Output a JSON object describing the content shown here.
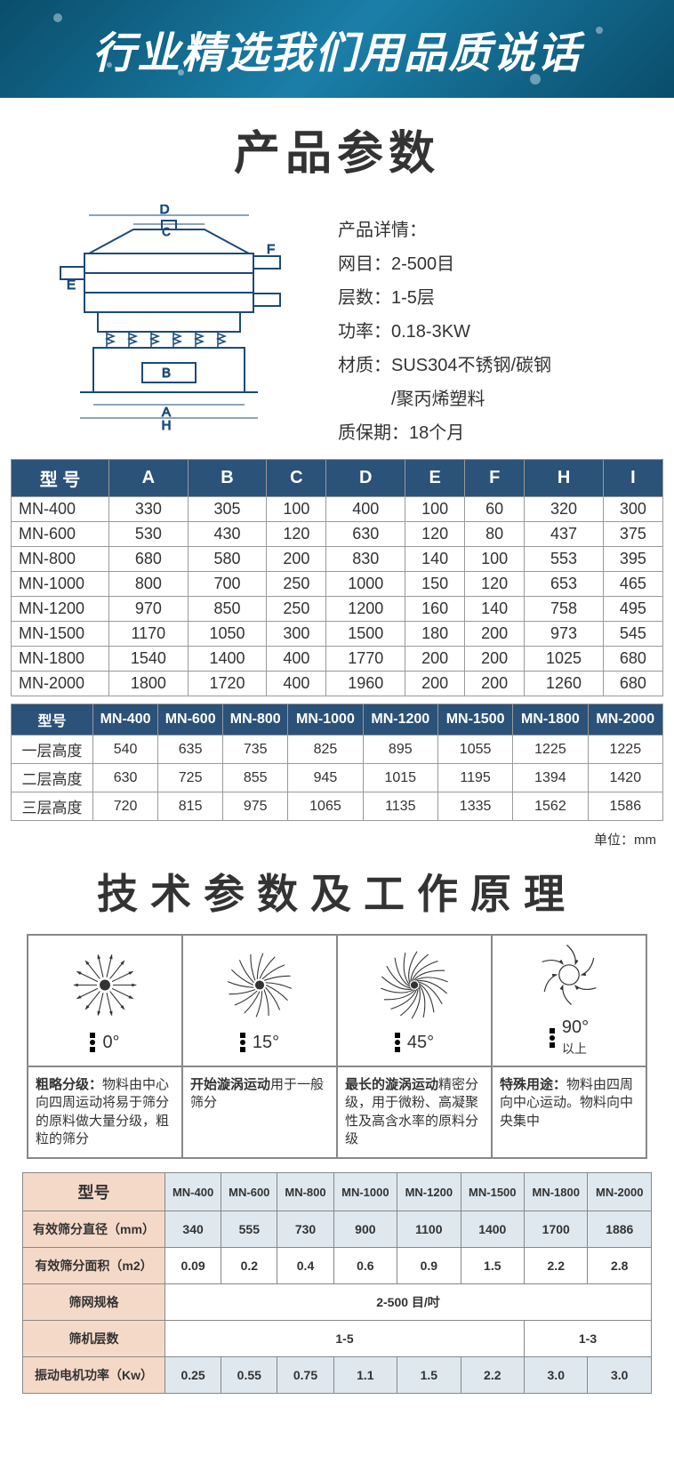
{
  "banner": {
    "text": "行业精选我们用品质说话",
    "bg_colors": [
      "#0a4d6b",
      "#1a7fa8"
    ]
  },
  "titles": {
    "product_params": "产品参数",
    "tech_principle": "技术参数及工作原理"
  },
  "details": {
    "header": "产品详情：",
    "mesh_label": "网目：",
    "mesh_value": "2-500目",
    "layers_label": "层数：",
    "layers_value": "1-5层",
    "power_label": "功率：",
    "power_value": "0.18-3KW",
    "material_label": "材质：",
    "material_value": "SUS304不锈钢/碳钢",
    "material_value2": "/聚丙烯塑料",
    "warranty_label": "质保期：",
    "warranty_value": "18个月"
  },
  "diagram_labels": {
    "A": "A",
    "B": "B",
    "C": "C",
    "D": "D",
    "E": "E",
    "F": "F",
    "H": "H"
  },
  "spec_table": {
    "headers": [
      "型 号",
      "A",
      "B",
      "C",
      "D",
      "E",
      "F",
      "H",
      "I"
    ],
    "rows": [
      [
        "MN-400",
        "330",
        "305",
        "100",
        "400",
        "100",
        "60",
        "320",
        "300"
      ],
      [
        "MN-600",
        "530",
        "430",
        "120",
        "630",
        "120",
        "80",
        "437",
        "375"
      ],
      [
        "MN-800",
        "680",
        "580",
        "200",
        "830",
        "140",
        "100",
        "553",
        "395"
      ],
      [
        "MN-1000",
        "800",
        "700",
        "250",
        "1000",
        "150",
        "120",
        "653",
        "465"
      ],
      [
        "MN-1200",
        "970",
        "850",
        "250",
        "1200",
        "160",
        "140",
        "758",
        "495"
      ],
      [
        "MN-1500",
        "1170",
        "1050",
        "300",
        "1500",
        "180",
        "200",
        "973",
        "545"
      ],
      [
        "MN-1800",
        "1540",
        "1400",
        "400",
        "1770",
        "200",
        "200",
        "1025",
        "680"
      ],
      [
        "MN-2000",
        "1800",
        "1720",
        "400",
        "1960",
        "200",
        "200",
        "1260",
        "680"
      ]
    ]
  },
  "height_table": {
    "headers": [
      "型号",
      "MN-400",
      "MN-600",
      "MN-800",
      "MN-1000",
      "MN-1200",
      "MN-1500",
      "MN-1800",
      "MN-2000"
    ],
    "rows": [
      [
        "一层高度",
        "540",
        "635",
        "735",
        "825",
        "895",
        "1055",
        "1225",
        "1225"
      ],
      [
        "二层高度",
        "630",
        "725",
        "855",
        "945",
        "1015",
        "1195",
        "1394",
        "1420"
      ],
      [
        "三层高度",
        "720",
        "815",
        "975",
        "1065",
        "1135",
        "1335",
        "1562",
        "1586"
      ]
    ],
    "unit": "单位：mm"
  },
  "principle": {
    "items": [
      {
        "angle": "0°",
        "desc_bold": "粗略分级：",
        "desc": "物料由中心向四周运动将易于筛分的原料做大量分级，粗粒的筛分"
      },
      {
        "angle": "15°",
        "desc_bold": "开始漩涡运动",
        "desc": "用于一般筛分"
      },
      {
        "angle": "45°",
        "desc_bold": "最长的漩涡运动",
        "desc": "精密分级，用于微粉、高凝聚性及高含水率的原料分级"
      },
      {
        "angle": "90°",
        "angle_suffix": "以上",
        "desc_bold": "特殊用途：",
        "desc": "物料由四周向中心运动。物料向中央集中"
      }
    ]
  },
  "tech_table": {
    "row_labels": [
      "型号",
      "有效筛分直径（mm）",
      "有效筛分面积（m2）",
      "筛网规格",
      "筛机层数",
      "振动电机功率（Kw）"
    ],
    "models": [
      "MN-400",
      "MN-600",
      "MN-800",
      "MN-1000",
      "MN-1200",
      "MN-1500",
      "MN-1800",
      "MN-2000"
    ],
    "diameter": [
      "340",
      "555",
      "730",
      "900",
      "1100",
      "1400",
      "1700",
      "1886"
    ],
    "area": [
      "0.09",
      "0.2",
      "0.4",
      "0.6",
      "0.9",
      "1.5",
      "2.2",
      "2.8"
    ],
    "mesh_spec": "2-500 目/吋",
    "layers1": "1-5",
    "layers2": "1-3",
    "power": [
      "0.25",
      "0.55",
      "0.75",
      "1.1",
      "1.5",
      "2.2",
      "3.0",
      "3.0"
    ]
  },
  "colors": {
    "header_bg": "#2b5278",
    "header_fg": "#ffffff",
    "tech_label_bg": "#f5d9c8",
    "tech_data_bg": "#dfe8ef",
    "border": "#888888",
    "text": "#333333"
  }
}
